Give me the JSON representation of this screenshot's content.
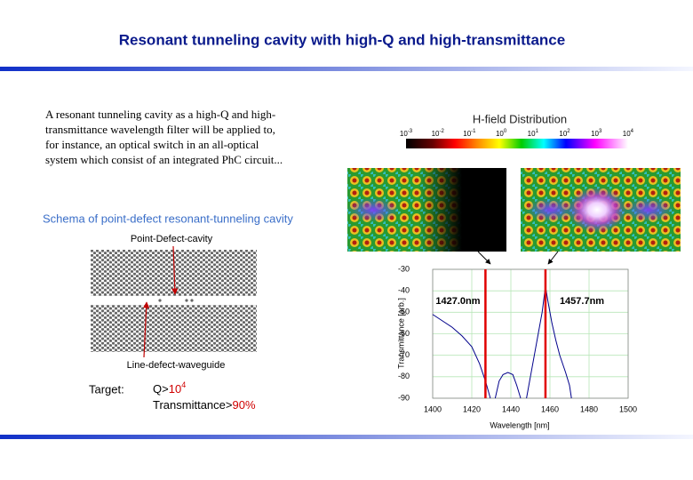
{
  "header": {
    "title": "Resonant tunneling cavity with high-Q and high-transmittance"
  },
  "description": [
    "A resonant tunneling cavity as a high-Q and high-",
    "transmittance wavelength filter will be applied to,",
    "for instance, an optical switch in an all-optical",
    "system which consist of an integrated PhC circuit..."
  ],
  "schema": {
    "title": "Schema of point-defect resonant-tunneling cavity",
    "top_label": "Point-Defect-cavity",
    "bottom_label": "Line-defect-waveguide"
  },
  "target": {
    "label": "Target:",
    "q": {
      "text": "Q>",
      "base": "10",
      "exp": "4"
    },
    "transmittance": {
      "text": "Transmittance>",
      "value": "90%"
    }
  },
  "colorbar": {
    "title": "H-field Distribution",
    "ticks": [
      {
        "base": "10",
        "exp": "-3"
      },
      {
        "base": "10",
        "exp": "-2"
      },
      {
        "base": "10",
        "exp": "-1"
      },
      {
        "base": "10",
        "exp": "0"
      },
      {
        "base": "10",
        "exp": "1"
      },
      {
        "base": "10",
        "exp": "2"
      },
      {
        "base": "10",
        "exp": "3"
      },
      {
        "base": "10",
        "exp": "4"
      }
    ]
  },
  "chart_data": {
    "type": "line",
    "x_label": "Wavelength [nm]",
    "y_label": "Transmittance [arb.]",
    "xlim": [
      1400,
      1500
    ],
    "xticks": [
      1400,
      1420,
      1440,
      1460,
      1480,
      1500
    ],
    "ylim": [
      -90,
      -30
    ],
    "yticks": [
      -90,
      -80,
      -70,
      -60,
      -50,
      -40,
      -30
    ],
    "grid": true,
    "series": [
      {
        "color": "#00008b",
        "x": [
          1400,
          1405,
          1410,
          1415,
          1420,
          1424,
          1427,
          1429.5,
          1430.5,
          1432,
          1434,
          1436,
          1438.5,
          1441,
          1443,
          1445,
          1446,
          1448,
          1450,
          1452,
          1454,
          1456,
          1457.7,
          1459,
          1461,
          1463,
          1465,
          1468,
          1470,
          1471
        ],
        "values": [
          -51,
          -54,
          -57,
          -61,
          -66,
          -74,
          -82,
          -90,
          null,
          -90,
          -82,
          -79,
          -78,
          -79,
          -84,
          -90,
          null,
          -90,
          -80,
          -70,
          -60,
          -50,
          -38,
          -45,
          -55,
          -63,
          -70,
          -78,
          -84,
          -90
        ]
      }
    ],
    "annotations": [
      {
        "value": 1427.0,
        "label": "1427.0nm",
        "color": "#e00000"
      },
      {
        "value": 1457.7,
        "label": "1457.7nm",
        "color": "#e00000"
      }
    ]
  }
}
